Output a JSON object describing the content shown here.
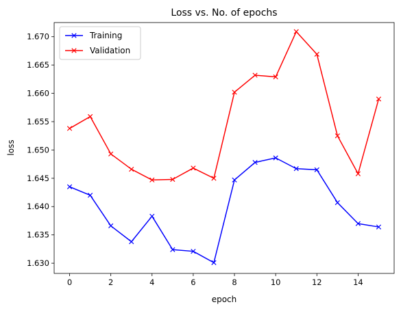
{
  "chart_data": {
    "type": "line",
    "title": "Loss vs. No. of epochs",
    "xlabel": "epoch",
    "ylabel": "loss",
    "xlim": [
      -0.75,
      15.75
    ],
    "ylim": [
      1.6282,
      1.6725
    ],
    "xticks": [
      0,
      2,
      4,
      6,
      8,
      10,
      12,
      14
    ],
    "yticks": [
      1.63,
      1.635,
      1.64,
      1.645,
      1.65,
      1.655,
      1.66,
      1.665,
      1.67
    ],
    "grid": false,
    "legend_position": "top-left",
    "x": [
      0,
      1,
      2,
      3,
      4,
      5,
      6,
      7,
      8,
      9,
      10,
      11,
      12,
      13,
      14,
      15
    ],
    "series": [
      {
        "name": "Training",
        "color": "#0000ff",
        "marker": "x",
        "values": [
          1.6435,
          1.642,
          1.6366,
          1.6338,
          1.6383,
          1.6324,
          1.6321,
          1.6301,
          1.6447,
          1.6478,
          1.6486,
          1.6467,
          1.6465,
          1.6407,
          1.637,
          1.6364
        ]
      },
      {
        "name": "Validation",
        "color": "#ff0000",
        "marker": "x",
        "values": [
          1.6538,
          1.6559,
          1.6493,
          1.6466,
          1.6447,
          1.6448,
          1.6468,
          1.645,
          1.6602,
          1.6632,
          1.6629,
          1.6709,
          1.6669,
          1.6525,
          1.6458,
          1.659
        ]
      }
    ]
  }
}
